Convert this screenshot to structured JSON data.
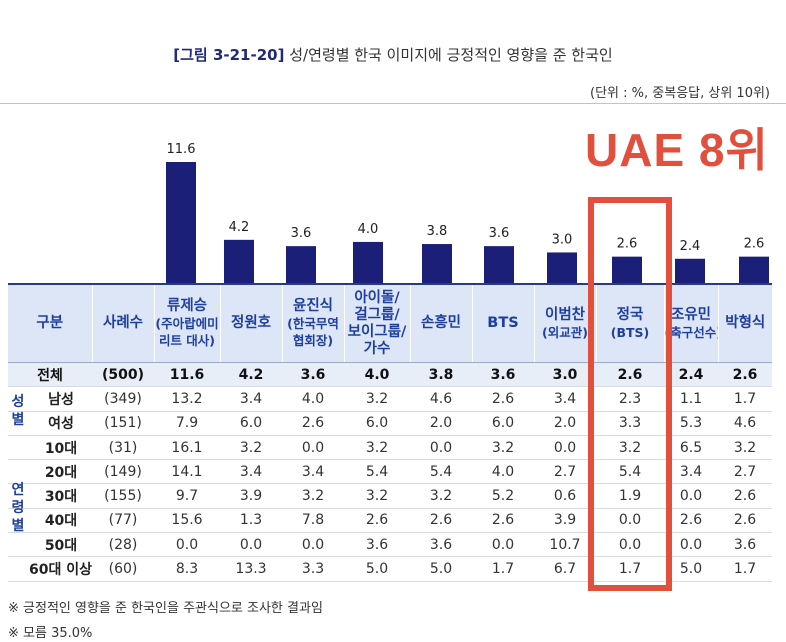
{
  "title": {
    "tag": "[그림 3-21-20]",
    "text": "성/연령별 한국 이미지에 긍정적인 영향을 준 한국인"
  },
  "unit": "(단위 : %, 중복응답, 상위 10위)",
  "annotation": "UAE 8위",
  "colors": {
    "bar": "#1c1f78",
    "highlight": "#e0503d",
    "header_bg": "#dde6f6",
    "header_text": "#1f3f9e"
  },
  "chart_data": {
    "type": "bar",
    "title": "성/연령별 한국 이미지에 긍정적인 영향을 준 한국인",
    "categories": [
      "류제승 (주아랍에미리트 대사)",
      "정원호",
      "윤진식 (한국무역협회장)",
      "아이돌/걸그룹/보이그룹/가수",
      "손흥민",
      "BTS",
      "이범찬 (외교관)",
      "정국 (BTS)",
      "조유민 (축구선수)",
      "박형식"
    ],
    "values": [
      11.6,
      4.2,
      3.6,
      4.0,
      3.8,
      3.6,
      3.0,
      2.6,
      2.4,
      2.6
    ],
    "labels": [
      "11.6",
      "4.2",
      "3.6",
      "4.0",
      "3.8",
      "3.6",
      "3.0",
      "2.6",
      "2.4",
      "2.6"
    ],
    "ylim": [
      0,
      11.6
    ],
    "ylabel": "%",
    "highlight_index": 7
  },
  "table": {
    "headers": [
      {
        "main": "구분",
        "sub": ""
      },
      {
        "main": "사례수",
        "sub": ""
      },
      {
        "main": "류제승",
        "sub": "(주아랍에미리트 대사)"
      },
      {
        "main": "정원호",
        "sub": ""
      },
      {
        "main": "윤진식",
        "sub": "(한국무역협회장)"
      },
      {
        "main": "아이돌/걸그룹/보이그룹/가수",
        "sub": ""
      },
      {
        "main": "손흥민",
        "sub": ""
      },
      {
        "main": "BTS",
        "sub": ""
      },
      {
        "main": "이범찬",
        "sub": "(외교관)"
      },
      {
        "main": "정국",
        "sub": "(BTS)"
      },
      {
        "main": "조유민",
        "sub": "(축구선수)"
      },
      {
        "main": "박형식",
        "sub": ""
      }
    ],
    "total": {
      "label": "전체",
      "n": "(500)",
      "values": [
        "11.6",
        "4.2",
        "3.6",
        "4.0",
        "3.8",
        "3.6",
        "3.0",
        "2.6",
        "2.4",
        "2.6"
      ]
    },
    "groups": [
      {
        "name": "성별",
        "rows": [
          {
            "label": "남성",
            "n": "(349)",
            "values": [
              "13.2",
              "3.4",
              "4.0",
              "3.2",
              "4.6",
              "2.6",
              "3.4",
              "2.3",
              "1.1",
              "1.7"
            ]
          },
          {
            "label": "여성",
            "n": "(151)",
            "values": [
              "7.9",
              "6.0",
              "2.6",
              "6.0",
              "2.0",
              "6.0",
              "2.0",
              "3.3",
              "5.3",
              "4.6"
            ]
          }
        ]
      },
      {
        "name": "연령별",
        "rows": [
          {
            "label": "10대",
            "n": "(31)",
            "values": [
              "16.1",
              "3.2",
              "0.0",
              "3.2",
              "0.0",
              "3.2",
              "0.0",
              "3.2",
              "6.5",
              "3.2"
            ]
          },
          {
            "label": "20대",
            "n": "(149)",
            "values": [
              "14.1",
              "3.4",
              "3.4",
              "5.4",
              "5.4",
              "4.0",
              "2.7",
              "5.4",
              "3.4",
              "2.7"
            ]
          },
          {
            "label": "30대",
            "n": "(155)",
            "values": [
              "9.7",
              "3.9",
              "3.2",
              "3.2",
              "3.2",
              "5.2",
              "0.6",
              "1.9",
              "0.0",
              "2.6"
            ]
          },
          {
            "label": "40대",
            "n": "(77)",
            "values": [
              "15.6",
              "1.3",
              "7.8",
              "2.6",
              "2.6",
              "2.6",
              "3.9",
              "0.0",
              "2.6",
              "2.6"
            ]
          },
          {
            "label": "50대",
            "n": "(28)",
            "values": [
              "0.0",
              "0.0",
              "0.0",
              "3.6",
              "3.6",
              "0.0",
              "10.7",
              "0.0",
              "0.0",
              "3.6"
            ]
          },
          {
            "label": "60대 이상",
            "n": "(60)",
            "values": [
              "8.3",
              "13.3",
              "3.3",
              "5.0",
              "5.0",
              "1.7",
              "6.7",
              "1.7",
              "5.0",
              "1.7"
            ]
          }
        ]
      }
    ]
  },
  "notes": [
    "※ 긍정적인 영향을 준 한국인을 주관식으로 조사한 결과임",
    "※ 모름 35.0%"
  ]
}
